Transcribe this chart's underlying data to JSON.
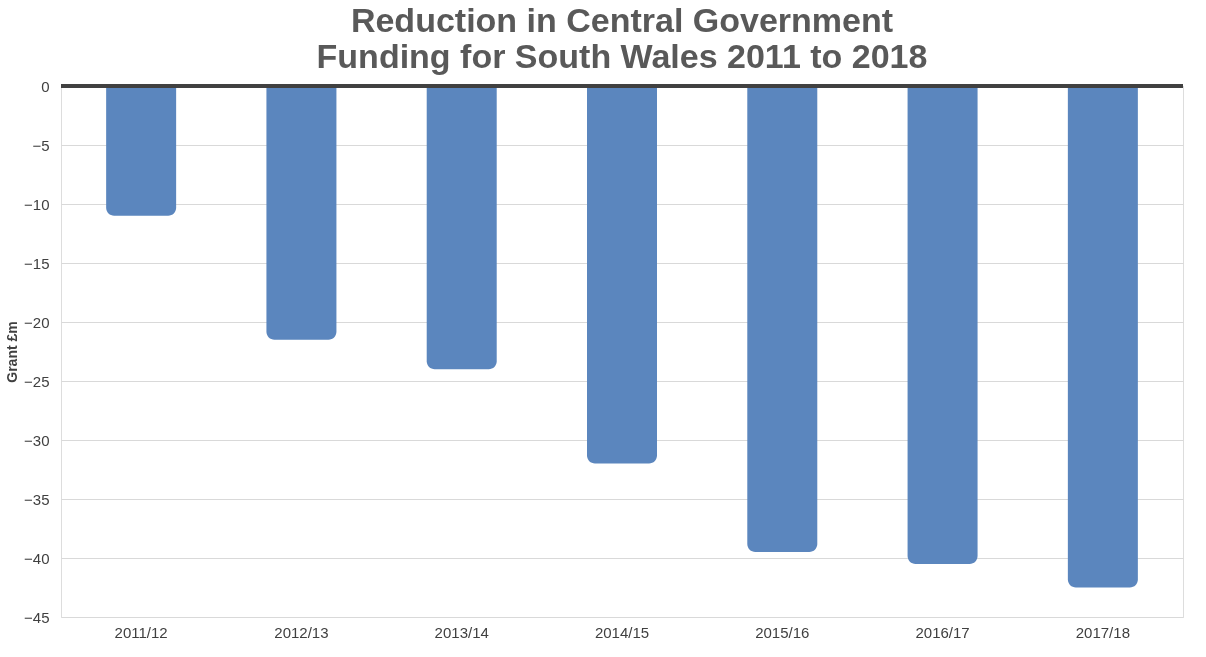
{
  "chart_data": {
    "type": "bar",
    "title": "Reduction in Central Government Funding for South Wales 2011 to 2018",
    "ylabel": "Grant £m",
    "categories": [
      "2011/12",
      "2012/13",
      "2013/14",
      "2014/15",
      "2015/16",
      "2016/17",
      "2017/18"
    ],
    "values": [
      -11,
      -21.5,
      -24,
      -32,
      -39.5,
      -40.5,
      -42.5
    ],
    "color": "#5b86be",
    "ylim": [
      -45,
      0
    ],
    "yticks": [
      0,
      -5,
      -10,
      -15,
      -20,
      -25,
      -30,
      -35,
      -40,
      -45
    ],
    "grid": "y"
  }
}
